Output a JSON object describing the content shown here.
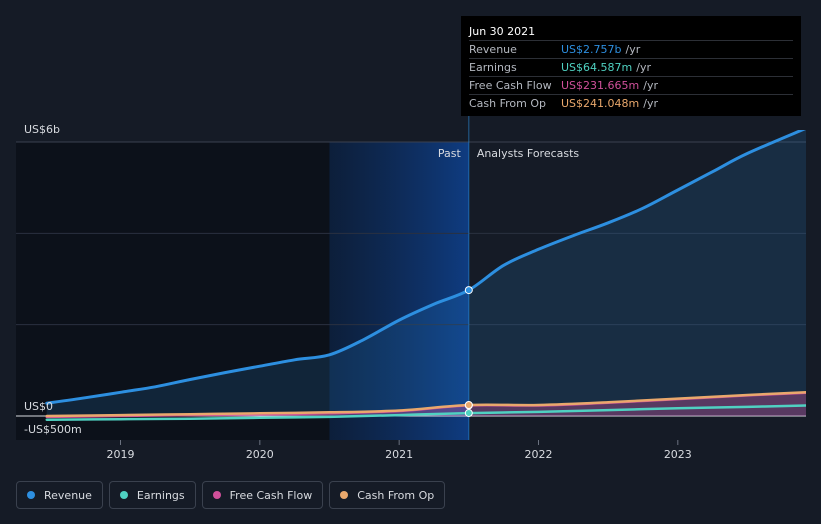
{
  "chart_data": {
    "type": "area",
    "y_axis": {
      "top_label": "US$6b",
      "zero_label": "US$0",
      "bottom_label": "-US$500m",
      "ylim": [
        -500,
        6000
      ]
    },
    "x_ticks": [
      {
        "label": "2019",
        "x": 2019.0
      },
      {
        "label": "2020",
        "x": 2020.0
      },
      {
        "label": "2021",
        "x": 2021.0
      },
      {
        "label": "2022",
        "x": 2022.0
      },
      {
        "label": "2023",
        "x": 2023.0
      }
    ],
    "xlim": [
      2018.25,
      2023.92
    ],
    "past_label": "Past",
    "forecast_label": "Analysts Forecasts",
    "past_end": 2021.5,
    "highlight_start": 2020.5,
    "series": [
      {
        "name": "Revenue",
        "color": "#2d8fe0",
        "fill": true,
        "points": [
          [
            2018.47,
            280
          ],
          [
            2018.75,
            400
          ],
          [
            2019.0,
            520
          ],
          [
            2019.25,
            640
          ],
          [
            2019.5,
            800
          ],
          [
            2019.75,
            950
          ],
          [
            2020.0,
            1090
          ],
          [
            2020.25,
            1230
          ],
          [
            2020.5,
            1340
          ],
          [
            2020.75,
            1680
          ],
          [
            2021.0,
            2100
          ],
          [
            2021.25,
            2450
          ],
          [
            2021.5,
            2757
          ],
          [
            2021.75,
            3300
          ],
          [
            2022.0,
            3650
          ],
          [
            2022.25,
            3950
          ],
          [
            2022.5,
            4230
          ],
          [
            2022.75,
            4550
          ],
          [
            2023.0,
            4950
          ],
          [
            2023.25,
            5350
          ],
          [
            2023.5,
            5750
          ],
          [
            2023.92,
            6300
          ]
        ]
      },
      {
        "name": "Earnings",
        "color": "#4fd1c1",
        "fill": false,
        "points": [
          [
            2018.47,
            -80
          ],
          [
            2019.0,
            -70
          ],
          [
            2019.5,
            -60
          ],
          [
            2020.0,
            -40
          ],
          [
            2020.5,
            -20
          ],
          [
            2021.0,
            20
          ],
          [
            2021.5,
            64.587
          ],
          [
            2022.0,
            90
          ],
          [
            2022.5,
            130
          ],
          [
            2023.0,
            170
          ],
          [
            2023.5,
            200
          ],
          [
            2023.92,
            230
          ]
        ]
      },
      {
        "name": "Free Cash Flow",
        "color": "#d0509a",
        "fill": true,
        "points": [
          [
            2018.47,
            -20
          ],
          [
            2019.0,
            0
          ],
          [
            2019.5,
            20
          ],
          [
            2020.0,
            40
          ],
          [
            2020.5,
            60
          ],
          [
            2021.0,
            110
          ],
          [
            2021.5,
            231.665
          ],
          [
            2022.0,
            230
          ],
          [
            2022.5,
            290
          ],
          [
            2023.0,
            370
          ],
          [
            2023.5,
            450
          ],
          [
            2023.92,
            510
          ]
        ]
      },
      {
        "name": "Cash From Op",
        "color": "#e9a86c",
        "fill": false,
        "points": [
          [
            2018.47,
            0
          ],
          [
            2019.0,
            20
          ],
          [
            2019.5,
            40
          ],
          [
            2020.0,
            60
          ],
          [
            2020.5,
            80
          ],
          [
            2021.0,
            120
          ],
          [
            2021.5,
            241.048
          ],
          [
            2022.0,
            240
          ],
          [
            2022.5,
            300
          ],
          [
            2023.0,
            380
          ],
          [
            2023.5,
            460
          ],
          [
            2023.92,
            520
          ]
        ]
      }
    ],
    "tooltip": {
      "date": "Jun 30 2021",
      "rows": [
        {
          "label": "Revenue",
          "value": "US$2.757b",
          "unit": "/yr",
          "color": "#2d8fe0"
        },
        {
          "label": "Earnings",
          "value": "US$64.587m",
          "unit": "/yr",
          "color": "#4fd1c1"
        },
        {
          "label": "Free Cash Flow",
          "value": "US$231.665m",
          "unit": "/yr",
          "color": "#d0509a"
        },
        {
          "label": "Cash From Op",
          "value": "US$241.048m",
          "unit": "/yr",
          "color": "#e9a86c"
        }
      ]
    },
    "legend": [
      {
        "label": "Revenue",
        "color": "#2d8fe0"
      },
      {
        "label": "Earnings",
        "color": "#4fd1c1"
      },
      {
        "label": "Free Cash Flow",
        "color": "#d0509a"
      },
      {
        "label": "Cash From Op",
        "color": "#e9a86c"
      }
    ]
  }
}
